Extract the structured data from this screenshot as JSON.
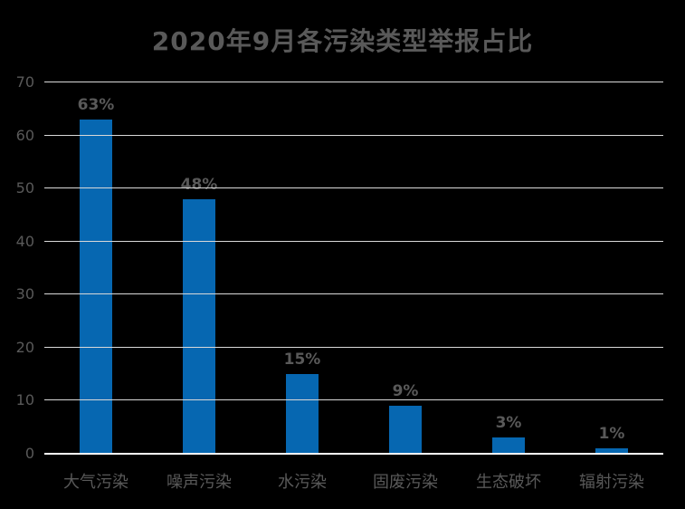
{
  "chart_data": {
    "type": "bar",
    "title": "2020年9月各污染类型举报占比",
    "categories": [
      "大气污染",
      "噪声污染",
      "水污染",
      "固废污染",
      "生态破坏",
      "辐射污染"
    ],
    "values": [
      63,
      48,
      15,
      9,
      3,
      1
    ],
    "data_labels": [
      "63%",
      "48%",
      "15%",
      "9%",
      "3%",
      "1%"
    ],
    "xlabel": "",
    "ylabel": "",
    "ylim": [
      0,
      70
    ],
    "y_ticks": [
      0,
      10,
      20,
      30,
      40,
      50,
      60,
      70
    ],
    "grid": true,
    "legend": null,
    "colors": {
      "background": "#000000",
      "bar": "#0667B1",
      "text": "#595959",
      "gridline": "#D9D9D9",
      "axis_line": "#FFFFFF"
    }
  }
}
